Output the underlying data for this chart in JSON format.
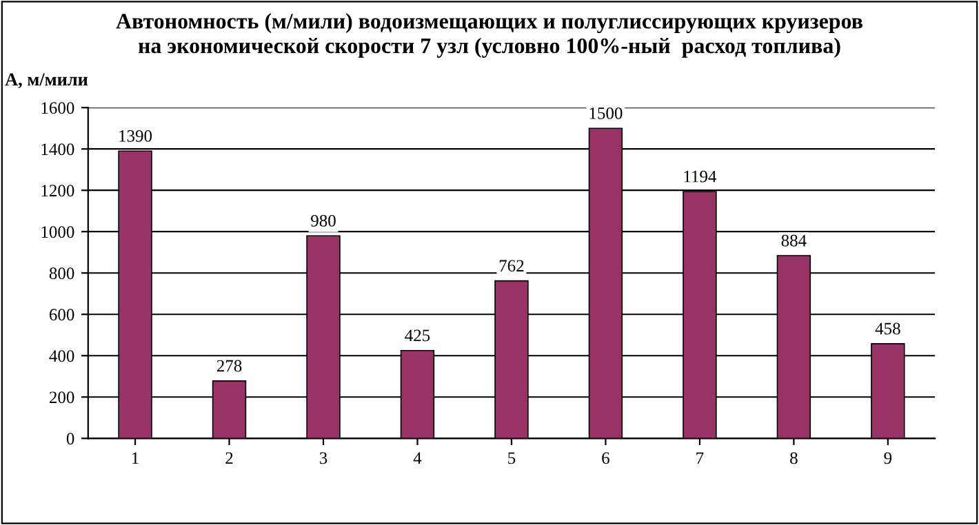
{
  "chart_data": {
    "type": "bar",
    "title": "Автономность (м/мили) водоизмещающих и полуглиссирующих круизеров\nна экономической скорости 7 узл (условно 100%-ный  расход топлива)",
    "ylabel": "А, м/мили",
    "categories": [
      "1",
      "2",
      "3",
      "4",
      "5",
      "6",
      "7",
      "8",
      "9"
    ],
    "values": [
      1390,
      278,
      980,
      425,
      762,
      1500,
      1194,
      884,
      458
    ],
    "color": "#993366",
    "ylim": [
      0,
      1600
    ],
    "yticks": [
      0,
      200,
      400,
      600,
      800,
      1000,
      1200,
      1400,
      1600
    ],
    "grid": "y",
    "data_labels": true
  }
}
